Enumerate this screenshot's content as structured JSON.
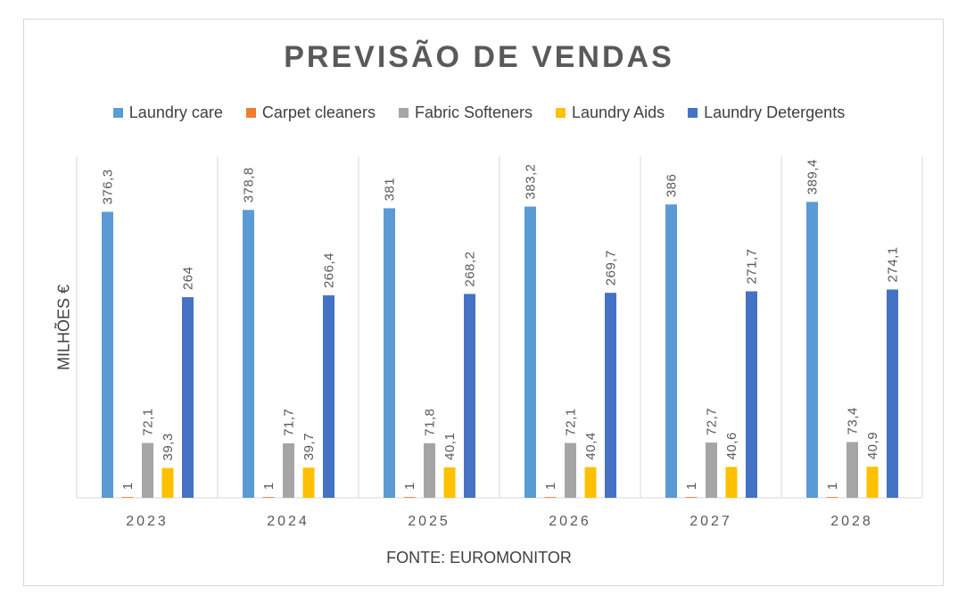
{
  "chart_data": {
    "type": "bar",
    "title": "PREVISÃO DE VENDAS",
    "xlabel": "FONTE: EUROMONITOR",
    "ylabel": "MILHÕES €",
    "categories": [
      "2023",
      "2024",
      "2025",
      "2026",
      "2027",
      "2028"
    ],
    "series": [
      {
        "name": "Laundry care",
        "color": "#5b9bd5",
        "values": [
          376.3,
          378.8,
          381,
          383.2,
          386,
          389.4
        ],
        "labels": [
          "376,3",
          "378,8",
          "381",
          "383,2",
          "386",
          "389,4"
        ]
      },
      {
        "name": "Carpet cleaners",
        "color": "#ed7d31",
        "values": [
          1,
          1,
          1,
          1,
          1,
          1
        ],
        "labels": [
          "1",
          "1",
          "1",
          "1",
          "1",
          "1"
        ]
      },
      {
        "name": "Fabric Softeners",
        "color": "#a5a5a5",
        "values": [
          72.1,
          71.7,
          71.8,
          72.1,
          72.7,
          73.4
        ],
        "labels": [
          "72,1",
          "71,7",
          "71,8",
          "72,1",
          "72,7",
          "73,4"
        ]
      },
      {
        "name": "Laundry Aids",
        "color": "#ffc000",
        "values": [
          39.3,
          39.7,
          40.1,
          40.4,
          40.6,
          40.9
        ],
        "labels": [
          "39,3",
          "39,7",
          "40,1",
          "40,4",
          "40,6",
          "40,9"
        ]
      },
      {
        "name": "Laundry Detergents",
        "color": "#4472c4",
        "values": [
          264,
          266.4,
          268.2,
          269.7,
          271.7,
          274.1
        ],
        "labels": [
          "264",
          "266,4",
          "268,2",
          "269,7",
          "271,7",
          "274,1"
        ]
      }
    ],
    "ylim": [
      0,
      450
    ],
    "grid": "vertical category separators",
    "legend": "top"
  }
}
